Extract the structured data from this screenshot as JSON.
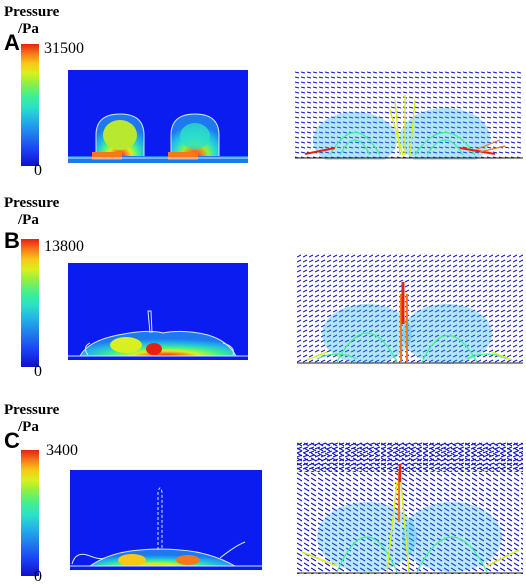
{
  "panels": [
    {
      "id": "A",
      "legend_title": "Pressure",
      "legend_unit": "/Pa",
      "max_label": "31500",
      "min_label": "0"
    },
    {
      "id": "B",
      "legend_title": "Pressure",
      "legend_unit": "/Pa",
      "max_label": "13800",
      "min_label": "0"
    },
    {
      "id": "C",
      "legend_title": "Pressure",
      "legend_unit": "/Pa",
      "max_label": "3400",
      "min_label": "0"
    }
  ],
  "colors": {
    "field_background": "#0a1cf0",
    "colormap": [
      "#1010c8",
      "#1a3cf0",
      "#1e78f0",
      "#20b4e8",
      "#2ce0c8",
      "#40f090",
      "#90f040",
      "#d8f020",
      "#f8c818",
      "#f87818",
      "#e82010"
    ]
  },
  "icons": [
    "pressure-colorbar",
    "velocity-vector-field"
  ]
}
